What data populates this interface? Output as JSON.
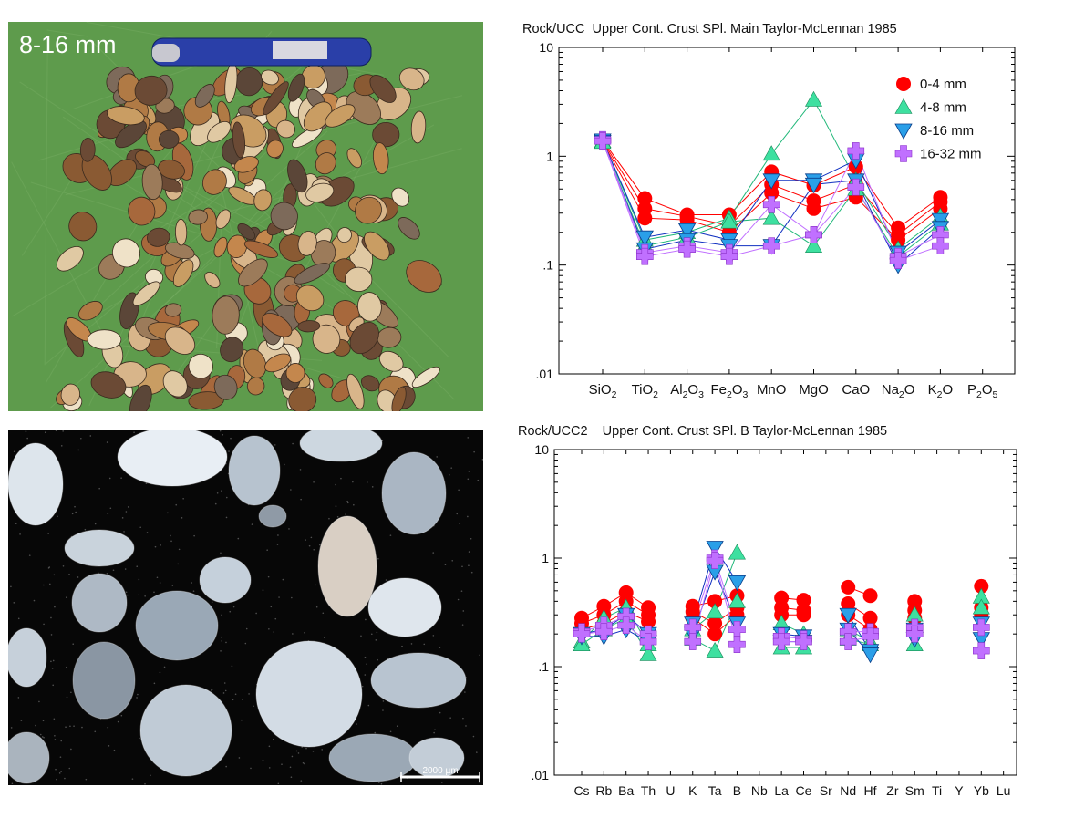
{
  "photos": {
    "pebbles": {
      "label": "8-16 mm"
    },
    "thin_section": {
      "scale_label": "2000 µm"
    }
  },
  "legend_colors": {
    "0-4 mm": "#ff0000",
    "4-8 mm": "#3ee0a0",
    "8-16 mm": "#2a9fe8",
    "16-32 mm": "#c070ff"
  },
  "chart_data": [
    {
      "type": "line",
      "title": "Rock/UCC  Upper Cont. Crust SPl. Main Taylor-McLennan 1985",
      "y_scale": "log",
      "ylim": [
        0.01,
        10
      ],
      "y_ticks": [
        "10",
        "1",
        ".1",
        ".01"
      ],
      "categories": [
        "SiO2",
        "TiO2",
        "Al2O3",
        "Fe2O3",
        "MnO",
        "MgO",
        "CaO",
        "Na2O",
        "K2O",
        "P2O5"
      ],
      "legend_position": "top-right",
      "series": [
        {
          "name": "0-4 mm",
          "marker": "circle",
          "color": "#ff0000",
          "samples": [
            [
              1.4,
              0.41,
              0.29,
              0.29,
              0.72,
              0.54,
              0.8,
              0.22,
              0.42,
              null
            ],
            [
              1.38,
              0.33,
              0.28,
              0.23,
              0.55,
              0.39,
              0.55,
              0.19,
              0.38,
              null
            ],
            [
              1.35,
              0.27,
              0.26,
              0.2,
              0.46,
              0.33,
              0.42,
              0.17,
              0.33,
              null
            ]
          ]
        },
        {
          "name": "4-8 mm",
          "marker": "triangle-up",
          "color": "#3ee0a0",
          "samples": [
            [
              1.38,
              0.17,
              0.2,
              0.27,
              1.05,
              3.3,
              0.6,
              0.14,
              0.28,
              null
            ],
            [
              1.35,
              0.15,
              0.18,
              0.25,
              0.27,
              0.15,
              0.5,
              0.12,
              0.24,
              null
            ]
          ]
        },
        {
          "name": "8-16 mm",
          "marker": "triangle-down",
          "color": "#2a9fe8",
          "samples": [
            [
              1.4,
              0.18,
              0.21,
              0.17,
              0.6,
              0.6,
              0.92,
              0.13,
              0.26,
              null
            ],
            [
              1.36,
              0.14,
              0.17,
              0.15,
              0.15,
              0.55,
              0.6,
              0.1,
              0.22,
              null
            ]
          ]
        },
        {
          "name": "16-32 mm",
          "marker": "plus",
          "color": "#c070ff",
          "samples": [
            [
              1.42,
              0.13,
              0.15,
              0.13,
              0.36,
              0.19,
              1.12,
              0.12,
              0.19,
              null
            ],
            [
              1.38,
              0.12,
              0.14,
              0.12,
              0.15,
              0.19,
              0.52,
              0.11,
              0.15,
              null
            ]
          ]
        }
      ]
    },
    {
      "type": "line",
      "title": "Rock/UCC2    Upper Cont. Crust SPl. B Taylor-McLennan 1985",
      "y_scale": "log",
      "ylim": [
        0.01,
        10
      ],
      "y_ticks": [
        "10",
        "1",
        ".1",
        ".01"
      ],
      "categories": [
        "Cs",
        "Rb",
        "Ba",
        "Th",
        "U",
        "K",
        "Ta",
        "B",
        "Nb",
        "La",
        "Ce",
        "Sr",
        "Nd",
        "Hf",
        "Zr",
        "Sm",
        "Ti",
        "Y",
        "Yb",
        "Lu"
      ],
      "series": [
        {
          "name": "0-4 mm",
          "marker": "circle",
          "color": "#ff0000",
          "samples": [
            [
              0.28,
              0.36,
              0.48,
              0.35,
              null,
              0.36,
              0.4,
              0.45,
              null,
              0.43,
              0.41,
              null,
              0.54,
              0.45,
              null,
              0.4,
              null,
              null,
              0.55,
              null
            ],
            [
              0.25,
              0.3,
              0.4,
              0.3,
              null,
              0.32,
              0.25,
              0.35,
              null,
              0.35,
              0.33,
              null,
              0.38,
              0.28,
              null,
              0.33,
              null,
              null,
              0.35,
              null
            ],
            [
              0.22,
              0.25,
              0.32,
              0.26,
              null,
              0.28,
              0.2,
              0.3,
              null,
              0.3,
              0.3,
              null,
              0.3,
              0.22,
              null,
              0.28,
              null,
              null,
              0.3,
              null
            ]
          ]
        },
        {
          "name": "4-8 mm",
          "marker": "triangle-up",
          "color": "#3ee0a0",
          "samples": [
            [
              0.17,
              0.28,
              0.35,
              0.16,
              null,
              0.22,
              0.32,
              1.12,
              null,
              0.25,
              0.2,
              null,
              0.22,
              0.17,
              null,
              0.3,
              null,
              null,
              0.44,
              null
            ],
            [
              0.16,
              0.22,
              0.28,
              0.13,
              null,
              0.18,
              0.14,
              0.4,
              null,
              0.15,
              0.15,
              null,
              0.18,
              0.16,
              null,
              0.16,
              null,
              null,
              0.35,
              null
            ]
          ]
        },
        {
          "name": "8-16 mm",
          "marker": "triangle-down",
          "color": "#2a9fe8",
          "samples": [
            [
              0.2,
              0.22,
              0.3,
              0.2,
              null,
              0.25,
              1.25,
              0.6,
              null,
              0.2,
              0.19,
              null,
              0.3,
              0.14,
              null,
              0.22,
              null,
              null,
              0.25,
              null
            ],
            [
              0.19,
              0.19,
              0.22,
              0.17,
              null,
              0.2,
              0.75,
              0.25,
              null,
              0.17,
              0.17,
              null,
              0.22,
              0.13,
              null,
              0.18,
              null,
              null,
              0.18,
              null
            ]
          ]
        },
        {
          "name": "16-32 mm",
          "marker": "plus",
          "color": "#c070ff",
          "samples": [
            [
              0.21,
              0.24,
              0.29,
              0.2,
              null,
              0.23,
              1.0,
              0.22,
              null,
              0.19,
              0.18,
              null,
              0.21,
              0.21,
              null,
              0.23,
              null,
              null,
              0.23,
              null
            ],
            [
              0.2,
              0.21,
              0.24,
              0.17,
              null,
              0.17,
              0.95,
              0.16,
              null,
              0.17,
              0.17,
              null,
              0.17,
              0.19,
              null,
              0.2,
              null,
              null,
              0.14,
              null
            ]
          ]
        }
      ]
    }
  ]
}
